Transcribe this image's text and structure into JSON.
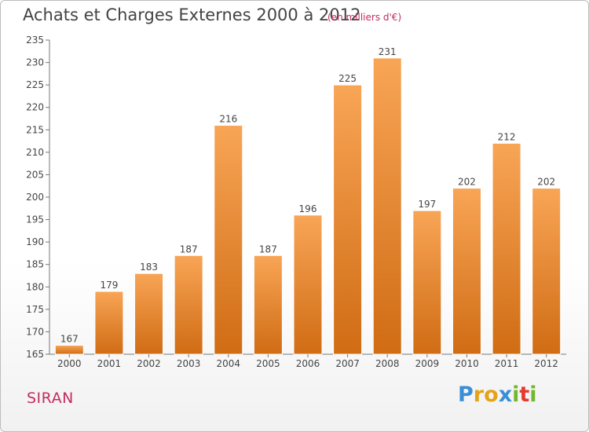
{
  "header": {
    "title": "Achats et Charges Externes 2000 à 2012",
    "subtitle": "(en milliers d'€)"
  },
  "footer": {
    "commune": "SIRAN",
    "logo_letters": [
      "P",
      "r",
      "o",
      "x",
      "i",
      "t",
      "i"
    ]
  },
  "colors": {
    "bar_top": "#f8a556",
    "bar_bottom": "#d06c14",
    "title": "#444444",
    "accent": "#c42d5e",
    "logo": [
      "#3a8ed8",
      "#e5a317",
      "#e5a317",
      "#3a8ed8",
      "#72b82e",
      "#e33c2f",
      "#72b82e"
    ]
  },
  "chart_data": {
    "type": "bar",
    "title": "Achats et Charges Externes 2000 à 2012",
    "subtitle": "(en milliers d'€)",
    "categories": [
      "2000",
      "2001",
      "2002",
      "2003",
      "2004",
      "2005",
      "2006",
      "2007",
      "2008",
      "2009",
      "2010",
      "2011",
      "2012"
    ],
    "values": [
      167,
      179,
      183,
      187,
      216,
      187,
      196,
      225,
      231,
      197,
      202,
      212,
      202
    ],
    "data_labels": [
      "167",
      "179",
      "183",
      "187",
      "216",
      "187",
      "196",
      "225",
      "231",
      "197",
      "202",
      "212",
      "202"
    ],
    "ylim": [
      165,
      235
    ],
    "yticks": [
      165,
      170,
      175,
      180,
      185,
      190,
      195,
      200,
      205,
      210,
      215,
      220,
      225,
      230,
      235
    ],
    "grid": false,
    "legend": "none"
  }
}
